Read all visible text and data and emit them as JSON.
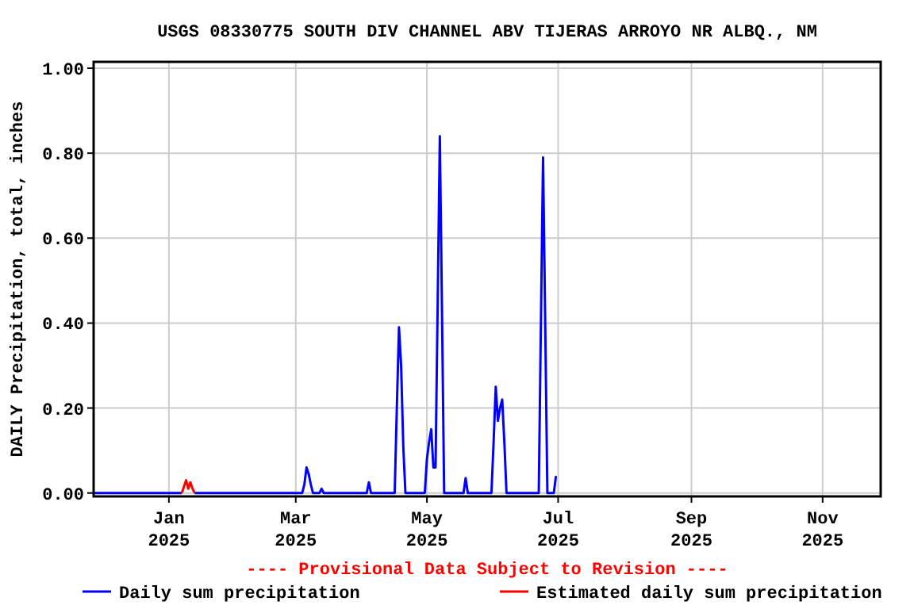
{
  "chart_data": {
    "type": "line",
    "title": "USGS 08330775 SOUTH DIV CHANNEL ABV TIJERAS ARROYO NR ALBQ., NM",
    "ylabel": "DAILY Precipitation, total, inches",
    "annotations": [
      "---- Provisional Data Subject to Revision ----"
    ],
    "xlim": [
      "2024-11-27",
      "2025-11-28"
    ],
    "xticks": [
      {
        "value": "2025-01-01",
        "label": "Jan\n2025"
      },
      {
        "value": "2025-03-01",
        "label": "Mar\n2025"
      },
      {
        "value": "2025-05-01",
        "label": "May\n2025"
      },
      {
        "value": "2025-07-01",
        "label": "Jul\n2025"
      },
      {
        "value": "2025-09-01",
        "label": "Sep\n2025"
      },
      {
        "value": "2025-11-01",
        "label": "Nov\n2025"
      }
    ],
    "ylim": [
      -0.008,
      1.015
    ],
    "yticks": [
      {
        "value": 0,
        "label": "0.00"
      },
      {
        "value": 0.2,
        "label": "0.20"
      },
      {
        "value": 0.4,
        "label": "0.40"
      },
      {
        "value": 0.6,
        "label": "0.60"
      },
      {
        "value": 0.8,
        "label": "0.80"
      },
      {
        "value": 1,
        "label": "1.00"
      }
    ],
    "grid": true,
    "legend": "bottom",
    "marker": "none",
    "line_style": "solid",
    "series": [
      {
        "name": "Daily sum precipitation",
        "color": "#0000ff",
        "x": [
          "2024-11-27",
          "2025-01-07",
          "2025-01-08",
          "2025-01-13",
          "2025-03-04",
          "2025-03-05",
          "2025-03-06",
          "2025-03-07",
          "2025-03-08",
          "2025-03-09",
          "2025-03-12",
          "2025-03-13",
          "2025-03-14",
          "2025-04-03",
          "2025-04-04",
          "2025-04-05",
          "2025-04-16",
          "2025-04-17",
          "2025-04-18",
          "2025-04-19",
          "2025-04-20",
          "2025-04-21",
          "2025-04-30",
          "2025-05-01",
          "2025-05-02",
          "2025-05-03",
          "2025-05-04",
          "2025-05-05",
          "2025-05-06",
          "2025-05-07",
          "2025-05-08",
          "2025-05-09",
          "2025-05-18",
          "2025-05-19",
          "2025-05-20",
          "2025-05-31",
          "2025-06-01",
          "2025-06-02",
          "2025-06-03",
          "2025-06-04",
          "2025-06-05",
          "2025-06-06",
          "2025-06-07",
          "2025-06-22",
          "2025-06-23",
          "2025-06-24",
          "2025-06-25",
          "2025-06-26",
          "2025-06-29",
          "2025-06-30"
        ],
        "values": [
          0,
          0,
          null,
          0,
          0,
          0.02,
          0.06,
          0.045,
          0.02,
          0,
          0,
          0.01,
          0,
          0,
          0.025,
          0,
          0,
          0.2,
          0.39,
          0.3,
          0.11,
          0,
          0,
          0.08,
          0.12,
          0.15,
          0.06,
          0.06,
          0.45,
          0.84,
          0.43,
          0,
          0,
          0.035,
          0,
          0,
          0.12,
          0.25,
          0.17,
          0.2,
          0.22,
          0.12,
          0,
          0,
          0.4,
          0.79,
          0.4,
          0,
          0,
          0.04
        ]
      },
      {
        "name": "Estimated daily sum precipitation",
        "color": "#ff0000",
        "x": [
          "2025-01-07",
          "2025-01-08",
          "2025-01-09",
          "2025-01-10",
          "2025-01-11",
          "2025-01-12",
          "2025-01-13"
        ],
        "values": [
          0,
          0.015,
          0.03,
          0.01,
          0.025,
          0.01,
          0
        ]
      }
    ]
  }
}
